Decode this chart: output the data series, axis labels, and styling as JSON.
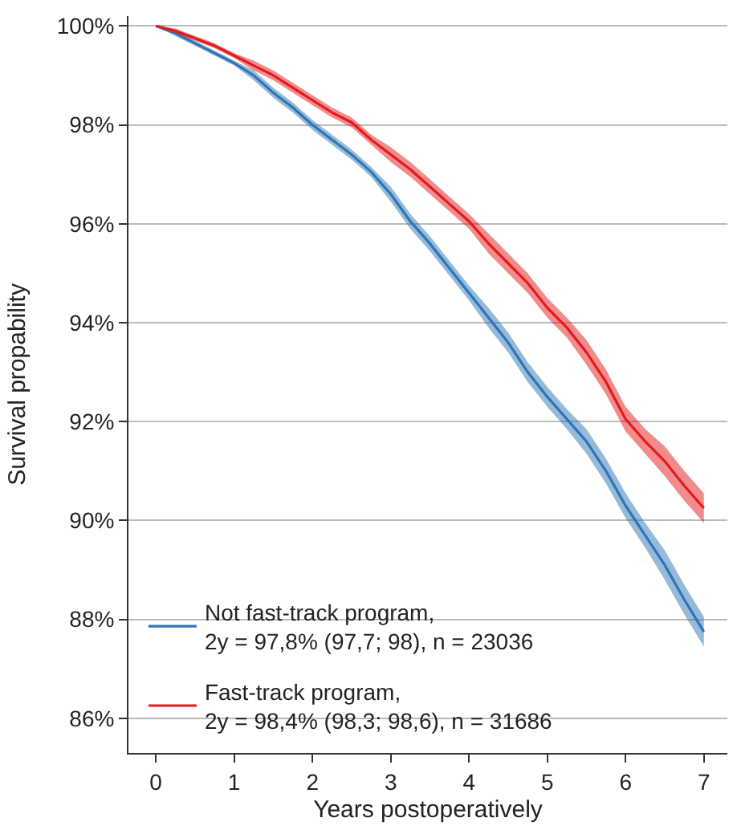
{
  "chart_data": {
    "type": "line",
    "xlabel": "Years postoperatively",
    "ylabel": "Survival propability",
    "x": [
      0,
      0.25,
      0.5,
      0.75,
      1,
      1.25,
      1.5,
      1.75,
      2,
      2.25,
      2.5,
      2.75,
      3,
      3.25,
      3.5,
      3.75,
      4,
      4.25,
      4.5,
      4.75,
      5,
      5.25,
      5.5,
      5.75,
      6,
      6.25,
      6.5,
      6.75,
      7
    ],
    "series": [
      {
        "name": "Not fast-track program,\n2y = 97,8% (97,7; 98), n = 23036",
        "color": "#2e75b6",
        "values": [
          100,
          99.85,
          99.65,
          99.45,
          99.25,
          99.0,
          98.65,
          98.35,
          98.0,
          97.7,
          97.4,
          97.05,
          96.6,
          96.05,
          95.6,
          95.1,
          94.6,
          94.1,
          93.6,
          93.0,
          92.5,
          92.05,
          91.6,
          91.0,
          90.3,
          89.7,
          89.1,
          88.4,
          87.75
        ],
        "lower": [
          100,
          99.8,
          99.6,
          99.4,
          99.2,
          98.9,
          98.55,
          98.25,
          97.9,
          97.6,
          97.3,
          96.95,
          96.45,
          95.9,
          95.45,
          94.95,
          94.45,
          93.9,
          93.4,
          92.8,
          92.3,
          91.85,
          91.35,
          90.75,
          90.05,
          89.45,
          88.8,
          88.1,
          87.45
        ],
        "upper": [
          100,
          99.9,
          99.7,
          99.5,
          99.3,
          99.1,
          98.75,
          98.45,
          98.1,
          97.8,
          97.5,
          97.15,
          96.75,
          96.2,
          95.75,
          95.25,
          94.75,
          94.3,
          93.8,
          93.2,
          92.7,
          92.25,
          91.85,
          91.25,
          90.55,
          89.95,
          89.4,
          88.7,
          88.05
        ]
      },
      {
        "name": "Fast-track program,\n2y = 98,4% (98,3; 98,6), n = 31686",
        "color": "#e41a1c",
        "values": [
          100,
          99.9,
          99.75,
          99.6,
          99.4,
          99.2,
          99.0,
          98.75,
          98.5,
          98.25,
          98.05,
          97.7,
          97.4,
          97.1,
          96.75,
          96.4,
          96.05,
          95.6,
          95.2,
          94.8,
          94.3,
          93.9,
          93.4,
          92.8,
          92.05,
          91.6,
          91.2,
          90.7,
          90.25
        ],
        "lower": [
          100,
          99.85,
          99.7,
          99.55,
          99.35,
          99.1,
          98.9,
          98.65,
          98.4,
          98.15,
          97.95,
          97.6,
          97.25,
          96.95,
          96.6,
          96.25,
          95.9,
          95.4,
          95.0,
          94.6,
          94.1,
          93.7,
          93.15,
          92.55,
          91.8,
          91.35,
          90.9,
          90.4,
          89.95
        ],
        "upper": [
          100,
          99.95,
          99.8,
          99.65,
          99.45,
          99.3,
          99.1,
          98.85,
          98.6,
          98.35,
          98.15,
          97.8,
          97.55,
          97.25,
          96.9,
          96.55,
          96.2,
          95.8,
          95.4,
          95.0,
          94.5,
          94.1,
          93.65,
          93.05,
          92.3,
          91.85,
          91.5,
          91.0,
          90.55
        ]
      }
    ],
    "xlim": [
      -0.35,
      7.3
    ],
    "xticks": [
      0,
      1,
      2,
      3,
      4,
      5,
      6,
      7
    ],
    "ylim": [
      85.3,
      100.2
    ],
    "yticks": [
      {
        "value": 86,
        "label": "86%"
      },
      {
        "value": 88,
        "label": "88%"
      },
      {
        "value": 90,
        "label": "90%"
      },
      {
        "value": 92,
        "label": "92%"
      },
      {
        "value": 94,
        "label": "94%"
      },
      {
        "value": 96,
        "label": "96%"
      },
      {
        "value": 98,
        "label": "98%"
      },
      {
        "value": 100,
        "label": "100%"
      }
    ],
    "grid": "y",
    "legend": "bottom left",
    "marker": "none",
    "line_style": "solid"
  }
}
